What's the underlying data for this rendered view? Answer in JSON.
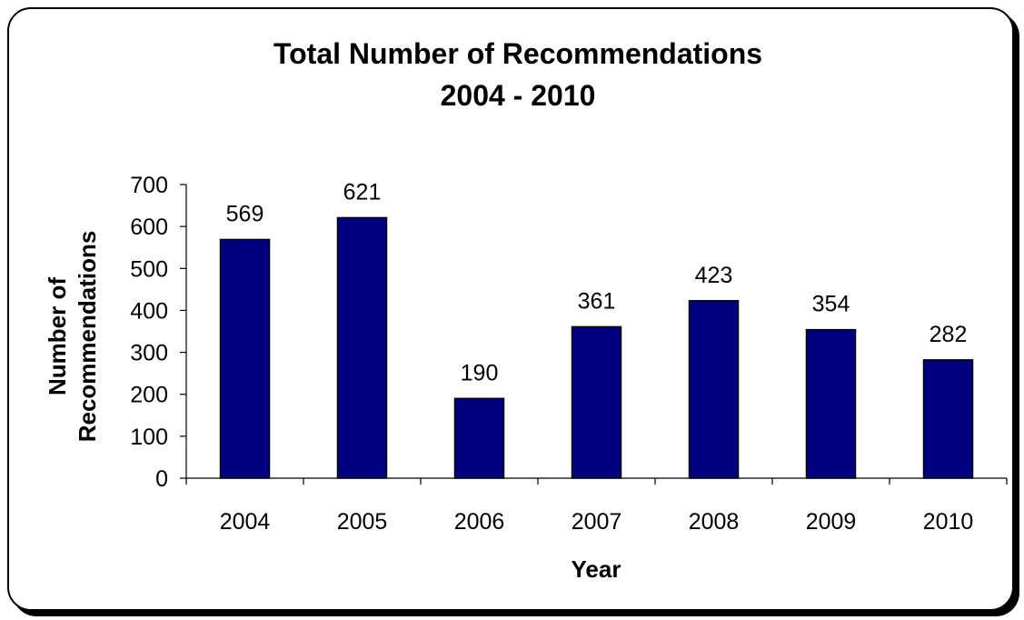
{
  "chart_data": {
    "type": "bar",
    "title": "Total Number of Recommendations",
    "subtitle": "2004 - 2010",
    "xlabel": "Year",
    "ylabel_lines": [
      "Number of",
      "Recommendations"
    ],
    "categories": [
      "2004",
      "2005",
      "2006",
      "2007",
      "2008",
      "2009",
      "2010"
    ],
    "values": [
      569,
      621,
      190,
      361,
      423,
      354,
      282
    ],
    "data_labels": [
      "569",
      "621",
      "190",
      "361",
      "423",
      "354",
      "282"
    ],
    "ylim": [
      0,
      700
    ],
    "yticks": [
      0,
      100,
      200,
      300,
      400,
      500,
      600,
      700
    ],
    "ytick_labels": [
      "0",
      "100",
      "200",
      "300",
      "400",
      "500",
      "600",
      "700"
    ],
    "grid": false,
    "legend": "none",
    "bar_color": "#000080",
    "frame_color": "#000000"
  }
}
